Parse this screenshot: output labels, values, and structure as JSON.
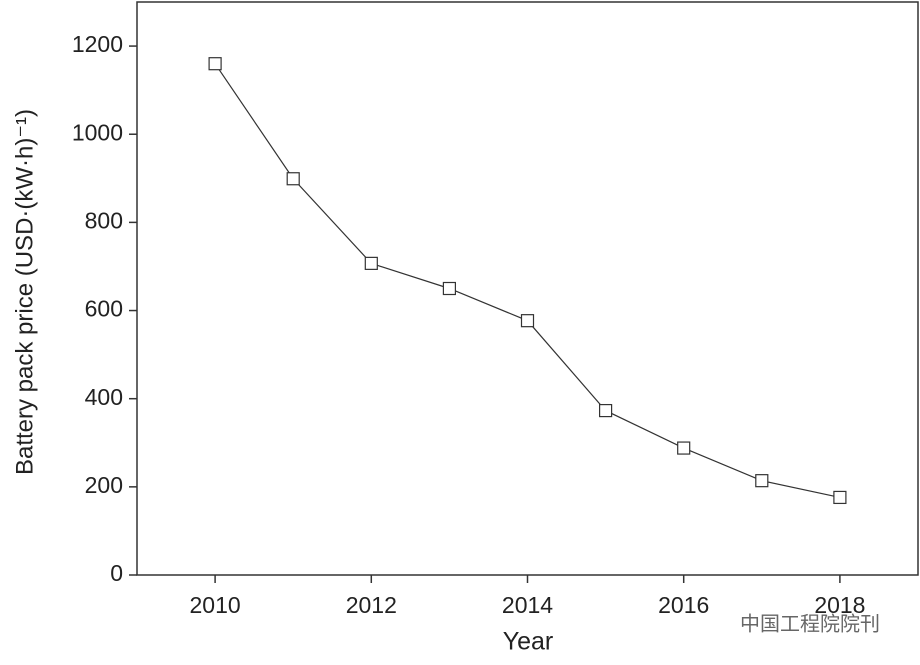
{
  "chart_data": {
    "type": "line",
    "x_label": "Year",
    "y_label": "Battery pack price (USD·(kW·h)⁻¹)",
    "x": [
      2010,
      2011,
      2012,
      2013,
      2014,
      2015,
      2016,
      2017,
      2018
    ],
    "series": [
      {
        "color": "#333333",
        "values": [
          1160,
          899,
          707,
          650,
          577,
          373,
          288,
          214,
          176
        ]
      }
    ],
    "xlim": [
      2009,
      2019
    ],
    "xticks": [
      2010,
      2012,
      2014,
      2016,
      2018
    ],
    "ylim": [
      0,
      1300
    ],
    "yticks": [
      0,
      200,
      400,
      600,
      800,
      1000,
      1200
    ],
    "grid": false,
    "watermark": "中国工程院院刊"
  }
}
